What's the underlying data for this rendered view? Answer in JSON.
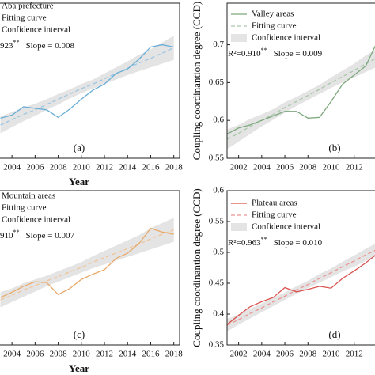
{
  "chart_data": [
    {
      "type": "line",
      "panel_label": "(a)",
      "x_label": "Year",
      "annotation": {
        "r2": "923",
        "sig": "**",
        "slope": "Slope = 0.008"
      },
      "x": [
        2003,
        2004,
        2005,
        2006,
        2007,
        2008,
        2009,
        2010,
        2011,
        2012,
        2013,
        2014,
        2015,
        2016,
        2017,
        2018
      ],
      "xlim": [
        2000.5,
        2018.5
      ],
      "xticks": [
        2004,
        2006,
        2008,
        2010,
        2012,
        2014,
        2016,
        2018
      ],
      "ylim": [
        0.55,
        0.755
      ],
      "series": [
        {
          "name": "Aba prefecture",
          "color": "#6aaed6",
          "values": [
            0.603,
            0.607,
            0.618,
            0.616,
            0.614,
            0.604,
            0.615,
            0.628,
            0.64,
            0.648,
            0.662,
            0.668,
            0.681,
            0.697,
            0.7,
            0.697
          ]
        },
        {
          "name": "Fitting curve",
          "color": "#9cc6e2",
          "dash": true,
          "values": [
            0.594,
            0.601,
            0.608,
            0.614,
            0.621,
            0.628,
            0.635,
            0.642,
            0.648,
            0.655,
            0.662,
            0.669,
            0.676,
            0.682,
            0.689,
            0.696
          ]
        },
        {
          "name": "Confidence interval",
          "color": "#e4e4e4",
          "lower": [
            0.583,
            0.591,
            0.599,
            0.606,
            0.614,
            0.621,
            0.629,
            0.636,
            0.642,
            0.648,
            0.654,
            0.66,
            0.665,
            0.67,
            0.675,
            0.68
          ],
          "upper": [
            0.605,
            0.611,
            0.617,
            0.622,
            0.628,
            0.635,
            0.641,
            0.648,
            0.654,
            0.662,
            0.67,
            0.678,
            0.687,
            0.694,
            0.703,
            0.712
          ]
        }
      ]
    },
    {
      "type": "line",
      "panel_label": "(b)",
      "y_label": "Coupling coordinantion degree (CCD)",
      "annotation": {
        "r2": "R²=0.910",
        "sig": "**",
        "slope": "Slope = 0.009"
      },
      "x": [
        2001,
        2002,
        2003,
        2004,
        2005,
        2006,
        2007,
        2008,
        2009,
        2010,
        2011,
        2012,
        2013,
        2014,
        2015
      ],
      "xlim": [
        2001,
        2019
      ],
      "xticks": [
        2002,
        2004,
        2006,
        2008,
        2010,
        2012
      ],
      "ylim": [
        0.55,
        0.755
      ],
      "yticks": [
        0.55,
        0.6,
        0.65,
        0.7
      ],
      "series": [
        {
          "name": "Valley areas",
          "color": "#7da77d",
          "values": [
            0.582,
            0.59,
            0.594,
            0.6,
            0.606,
            0.612,
            0.612,
            0.603,
            0.604,
            0.625,
            0.648,
            0.66,
            0.672,
            0.704,
            0.703
          ]
        },
        {
          "name": "Fitting curve",
          "color": "#a9c8a9",
          "dash": true,
          "values": [
            0.575,
            0.583,
            0.592,
            0.6,
            0.608,
            0.617,
            0.625,
            0.633,
            0.641,
            0.65,
            0.658,
            0.666,
            0.675,
            0.683,
            0.691
          ]
        },
        {
          "name": "Confidence interval",
          "color": "#e4e4e4",
          "lower": [
            0.562,
            0.572,
            0.582,
            0.592,
            0.601,
            0.61,
            0.619,
            0.627,
            0.635,
            0.643,
            0.65,
            0.657,
            0.664,
            0.671,
            0.678
          ],
          "upper": [
            0.588,
            0.594,
            0.602,
            0.608,
            0.615,
            0.624,
            0.631,
            0.639,
            0.647,
            0.657,
            0.666,
            0.675,
            0.686,
            0.695,
            0.704
          ]
        }
      ]
    },
    {
      "type": "line",
      "panel_label": "(c)",
      "x_label": "Year",
      "annotation": {
        "r2": "910",
        "sig": "**",
        "slope": "Slope = 0.007"
      },
      "x": [
        2003,
        2004,
        2005,
        2006,
        2007,
        2008,
        2009,
        2010,
        2011,
        2012,
        2013,
        2014,
        2015,
        2016,
        2017,
        2018
      ],
      "xlim": [
        2000.5,
        2018.5
      ],
      "xticks": [
        2004,
        2006,
        2008,
        2010,
        2012,
        2014,
        2016,
        2018
      ],
      "ylim": [
        0.45,
        0.655
      ],
      "series": [
        {
          "name": "Mountain areas",
          "color": "#e8a96a",
          "values": [
            0.513,
            0.52,
            0.528,
            0.534,
            0.533,
            0.517,
            0.525,
            0.537,
            0.544,
            0.55,
            0.565,
            0.572,
            0.585,
            0.605,
            0.6,
            0.597
          ]
        },
        {
          "name": "Fitting curve",
          "color": "#f0c59a",
          "dash": true,
          "values": [
            0.51,
            0.516,
            0.523,
            0.529,
            0.535,
            0.541,
            0.547,
            0.553,
            0.56,
            0.566,
            0.572,
            0.578,
            0.584,
            0.591,
            0.597,
            0.603
          ]
        },
        {
          "name": "Confidence interval",
          "color": "#e4e4e4",
          "lower": [
            0.5,
            0.507,
            0.514,
            0.521,
            0.528,
            0.534,
            0.54,
            0.546,
            0.552,
            0.557,
            0.562,
            0.567,
            0.572,
            0.577,
            0.582,
            0.587
          ],
          "upper": [
            0.52,
            0.525,
            0.532,
            0.537,
            0.542,
            0.548,
            0.554,
            0.56,
            0.568,
            0.575,
            0.582,
            0.589,
            0.596,
            0.605,
            0.612,
            0.619
          ]
        }
      ]
    },
    {
      "type": "line",
      "panel_label": "(d)",
      "y_label": "Coupling coordinantion degree (CCD)",
      "annotation": {
        "r2": "R²=0.963",
        "sig": "**",
        "slope": "Slope = 0.010"
      },
      "x": [
        2001,
        2002,
        2003,
        2004,
        2005,
        2006,
        2007,
        2008,
        2009,
        2010,
        2011,
        2012,
        2013,
        2014,
        2015
      ],
      "xlim": [
        2001,
        2019
      ],
      "xticks": [
        2002,
        2004,
        2006,
        2008,
        2010,
        2012
      ],
      "ylim": [
        0.35,
        0.6
      ],
      "yticks": [
        0.35,
        0.4,
        0.45,
        0.5,
        0.55,
        0.6
      ],
      "series": [
        {
          "name": "Plateau areas",
          "color": "#d9534f",
          "values": [
            0.383,
            0.398,
            0.412,
            0.42,
            0.427,
            0.443,
            0.436,
            0.44,
            0.445,
            0.442,
            0.458,
            0.47,
            0.483,
            0.498,
            0.512
          ]
        },
        {
          "name": "Fitting curve",
          "color": "#e99593",
          "dash": true,
          "values": [
            0.382,
            0.391,
            0.401,
            0.41,
            0.42,
            0.429,
            0.439,
            0.448,
            0.458,
            0.467,
            0.477,
            0.486,
            0.496,
            0.505,
            0.515
          ]
        },
        {
          "name": "Confidence interval",
          "color": "#e4e4e4",
          "lower": [
            0.372,
            0.383,
            0.393,
            0.403,
            0.413,
            0.423,
            0.433,
            0.442,
            0.451,
            0.46,
            0.469,
            0.477,
            0.486,
            0.494,
            0.503
          ],
          "upper": [
            0.392,
            0.399,
            0.409,
            0.417,
            0.427,
            0.435,
            0.445,
            0.454,
            0.465,
            0.474,
            0.485,
            0.495,
            0.506,
            0.516,
            0.527
          ]
        }
      ]
    }
  ]
}
